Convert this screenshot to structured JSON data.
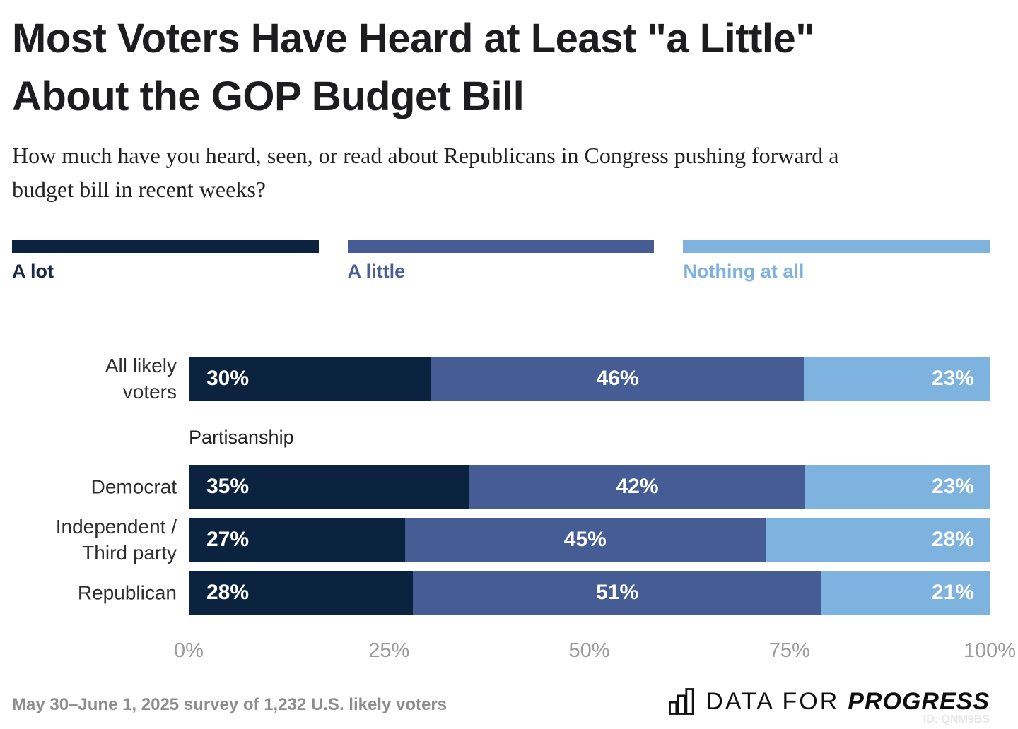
{
  "title": {
    "line1": "Most Voters Have Heard at Least \"a Little\"",
    "line2": "About the GOP Budget Bill"
  },
  "subtitle": "How much have you heard, seen, or read about Republicans in Congress pushing forward a budget bill in recent weeks?",
  "legend": [
    {
      "label": "A lot",
      "color": "#0c2340",
      "label_color": "#16294d"
    },
    {
      "label": "A little",
      "color": "#455d94",
      "label_color": "#4a5f97"
    },
    {
      "label": "Nothing at all",
      "color": "#7db3de",
      "label_color": "#7fb2de"
    }
  ],
  "chart_data": {
    "type": "bar",
    "stacked": true,
    "orientation": "horizontal",
    "title": "Most Voters Have Heard at Least \"a Little\" About the GOP Budget Bill",
    "question": "How much have you heard, seen, or read about Republicans in Congress pushing forward a budget bill in recent weeks?",
    "categories": [
      "All likely voters",
      "Democrat",
      "Independent / Third party",
      "Republican"
    ],
    "categories_display": [
      "All likely\nvoters",
      "Democrat",
      "Independent /\nThird party",
      "Republican"
    ],
    "group_heading": "Partisanship",
    "series": [
      {
        "name": "A lot",
        "color": "#0c2340",
        "values": [
          30,
          35,
          27,
          28
        ]
      },
      {
        "name": "A little",
        "color": "#455d94",
        "values": [
          46,
          42,
          45,
          51
        ]
      },
      {
        "name": "Nothing at all",
        "color": "#7db3de",
        "values": [
          23,
          23,
          28,
          21
        ]
      }
    ],
    "value_suffix": "%",
    "x_axis": {
      "ticks": [
        "0%",
        "25%",
        "50%",
        "75%",
        "100%"
      ],
      "range": [
        0,
        100
      ]
    },
    "legend_position": "top",
    "grid": false
  },
  "footer": {
    "source": "May 30–June 1, 2025 survey of 1,232 U.S. likely voters",
    "brand": {
      "regular": "DATA FOR",
      "bold": "PROGRESS"
    },
    "chart_id": "ID: QNM9BS"
  }
}
